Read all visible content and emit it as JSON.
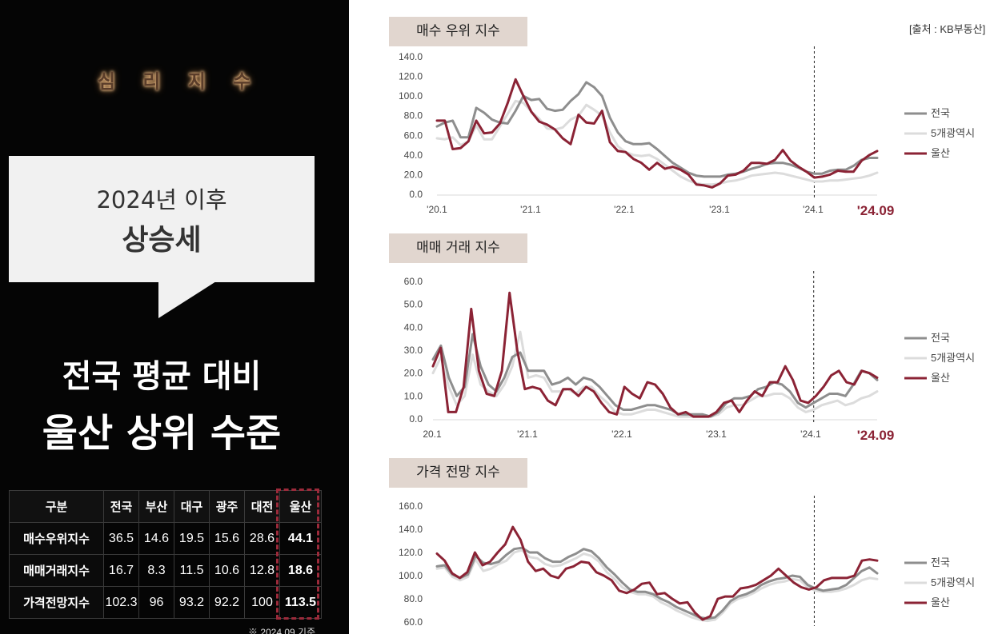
{
  "left": {
    "kicker": "심 리 지 수",
    "bubble": {
      "line1": "2024년 이후",
      "line2": "상승세"
    },
    "headline1": "전국 평균 대비",
    "headline2": "울산 상위 수준",
    "table": {
      "headers": [
        "구분",
        "전국",
        "부산",
        "대구",
        "광주",
        "대전",
        "울산"
      ],
      "rows": [
        [
          "매수우위지수",
          "36.5",
          "14.6",
          "19.5",
          "15.6",
          "28.6",
          "44.1"
        ],
        [
          "매매거래지수",
          "16.7",
          "8.3",
          "11.5",
          "10.6",
          "12.8",
          "18.6"
        ],
        [
          "가격전망지수",
          "102.3",
          "96",
          "93.2",
          "92.2",
          "100",
          "113.5"
        ]
      ]
    },
    "footnote": "※ 2024.09 기준"
  },
  "source": "[출처 : KB부동산]",
  "colors": {
    "national": "#8e8e8e",
    "metro5": "#dcdcdc",
    "ulsan": "#8b2335"
  },
  "chart_data": [
    {
      "type": "line",
      "title": "매수 우위 지수",
      "ylim": [
        0,
        140
      ],
      "yticks": [
        "0.0",
        "20.0",
        "40.0",
        "60.0",
        "80.0",
        "100.0",
        "120.0",
        "140.0"
      ],
      "xticks": [
        "'20.1",
        "'21.1",
        "'22.1",
        "'23.1",
        "'24.1"
      ],
      "end_label": "'24.09",
      "marker_index": 48,
      "legend": [
        "전국",
        "5개광역시",
        "울산"
      ],
      "legend_position": "right",
      "grid": false,
      "series": [
        {
          "name": "전국",
          "values": [
            69,
            73,
            75,
            58,
            58,
            88,
            83,
            76,
            73,
            72,
            85,
            100,
            96,
            97,
            87,
            85,
            86,
            95,
            102,
            114,
            109,
            100,
            78,
            63,
            54,
            51,
            51,
            52,
            46,
            39,
            32,
            27,
            22,
            19,
            18,
            18,
            18,
            20,
            21,
            23,
            26,
            28,
            31,
            32,
            32,
            30,
            27,
            23,
            21,
            21,
            24,
            25,
            25,
            29,
            35,
            37,
            37
          ]
        },
        {
          "name": "5개광역시",
          "values": [
            57,
            56,
            58,
            50,
            54,
            70,
            56,
            56,
            69,
            82,
            95,
            93,
            84,
            77,
            67,
            66,
            68,
            76,
            80,
            91,
            86,
            80,
            63,
            49,
            43,
            40,
            39,
            40,
            36,
            30,
            24,
            18,
            14,
            11,
            10,
            10,
            11,
            13,
            14,
            16,
            19,
            20,
            21,
            22,
            21,
            19,
            17,
            15,
            13,
            13,
            14,
            14,
            15,
            16,
            17,
            19,
            22
          ]
        },
        {
          "name": "울산",
          "values": [
            75,
            75,
            46,
            47,
            54,
            75,
            62,
            63,
            72,
            93,
            117,
            100,
            84,
            74,
            71,
            66,
            57,
            51,
            81,
            73,
            72,
            85,
            53,
            44,
            43,
            36,
            32,
            25,
            32,
            26,
            28,
            25,
            20,
            10,
            9,
            7,
            11,
            19,
            20,
            24,
            32,
            32,
            31,
            35,
            45,
            34,
            28,
            23,
            17,
            18,
            20,
            24,
            23,
            23,
            34,
            40,
            44
          ]
        }
      ]
    },
    {
      "type": "line",
      "title": "매매 거래 지수",
      "ylim": [
        0,
        60
      ],
      "yticks": [
        "0.0",
        "10.0",
        "20.0",
        "30.0",
        "40.0",
        "50.0",
        "60.0"
      ],
      "xticks": [
        "20.1",
        "'21.1",
        "'22.1",
        "'23.1",
        "'24.1"
      ],
      "end_label": "'24.09",
      "marker_index": 48,
      "legend": [
        "전국",
        "5개광역시",
        "울산"
      ],
      "legend_position": "right",
      "grid": false,
      "series": [
        {
          "name": "전국",
          "values": [
            26,
            32,
            18,
            10,
            14,
            37,
            23,
            15,
            12,
            18,
            27,
            29,
            21,
            21,
            21,
            15,
            16,
            18,
            15,
            18,
            17,
            14,
            10,
            6,
            4,
            4,
            5,
            6,
            6,
            5,
            4,
            2,
            2,
            2,
            2,
            1,
            3,
            7,
            9,
            9,
            10,
            13,
            14,
            16,
            15,
            12,
            7,
            5,
            7,
            9,
            11,
            11,
            10,
            15,
            21,
            20,
            17
          ]
        },
        {
          "name": "5개광역시",
          "values": [
            20,
            27,
            14,
            6,
            10,
            28,
            15,
            12,
            10,
            15,
            23,
            38,
            18,
            19,
            18,
            12,
            12,
            13,
            11,
            14,
            14,
            10,
            7,
            3,
            2,
            2,
            3,
            4,
            4,
            3,
            2,
            1,
            1,
            1,
            1,
            1,
            2,
            5,
            6,
            6,
            8,
            10,
            10,
            11,
            11,
            9,
            5,
            3,
            4,
            6,
            7,
            8,
            6,
            7,
            9,
            10,
            12
          ]
        },
        {
          "name": "울산",
          "values": [
            23,
            31,
            3,
            3,
            14,
            48,
            21,
            11,
            10,
            21,
            55,
            30,
            13,
            14,
            13,
            8,
            6,
            13,
            13,
            10,
            14,
            12,
            7,
            3,
            2,
            14,
            11,
            9,
            16,
            15,
            11,
            5,
            2,
            3,
            1,
            1,
            1,
            3,
            7,
            8,
            3,
            8,
            12,
            10,
            16,
            16,
            23,
            17,
            8,
            7,
            10,
            14,
            19,
            21,
            16,
            15,
            21,
            20,
            18
          ]
        }
      ]
    },
    {
      "type": "line",
      "title": "가격 전망 지수",
      "ylim": [
        60,
        160
      ],
      "yticks": [
        "60.0",
        "80.0",
        "100.0",
        "120.0",
        "140.0",
        "160.0"
      ],
      "marker_index": 48,
      "legend": [
        "전국",
        "5개광역시",
        "울산"
      ],
      "legend_position": "right",
      "grid": false,
      "series": [
        {
          "name": "전국",
          "values": [
            108,
            109,
            101,
            98,
            101,
            117,
            111,
            110,
            112,
            118,
            123,
            124,
            120,
            120,
            115,
            112,
            112,
            116,
            119,
            123,
            121,
            115,
            107,
            101,
            94,
            88,
            86,
            86,
            84,
            80,
            77,
            73,
            70,
            67,
            64,
            63,
            64,
            70,
            78,
            82,
            84,
            87,
            92,
            95,
            97,
            98,
            100,
            99,
            92,
            89,
            87,
            88,
            89,
            92,
            98,
            104,
            107,
            102
          ]
        },
        {
          "name": "5개광역시",
          "values": [
            106,
            107,
            99,
            96,
            99,
            114,
            104,
            106,
            110,
            113,
            120,
            122,
            116,
            115,
            110,
            108,
            109,
            112,
            115,
            119,
            117,
            112,
            103,
            97,
            90,
            86,
            84,
            84,
            82,
            77,
            74,
            70,
            67,
            64,
            62,
            61,
            62,
            68,
            76,
            80,
            82,
            85,
            89,
            92,
            94,
            95,
            97,
            96,
            90,
            87,
            86,
            86,
            87,
            89,
            92,
            96,
            98,
            97
          ]
        },
        {
          "name": "울산",
          "values": [
            119,
            113,
            102,
            98,
            103,
            120,
            109,
            112,
            120,
            127,
            142,
            131,
            112,
            104,
            106,
            100,
            98,
            106,
            108,
            112,
            111,
            103,
            100,
            96,
            87,
            85,
            88,
            93,
            94,
            84,
            85,
            80,
            76,
            77,
            68,
            62,
            65,
            80,
            82,
            82,
            89,
            90,
            92,
            96,
            100,
            106,
            100,
            94,
            90,
            88,
            90,
            96,
            98,
            98,
            98,
            100,
            113,
            114,
            113
          ]
        }
      ]
    }
  ]
}
